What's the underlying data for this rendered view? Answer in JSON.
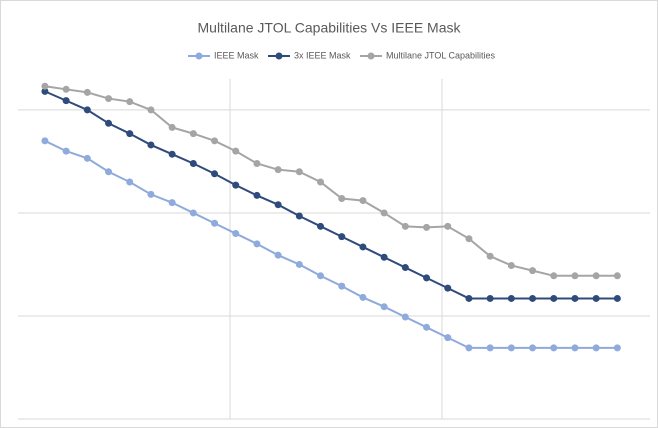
{
  "chart_data": {
    "type": "line",
    "title": "Multilane JTOL Capabilities Vs IEEE Mask",
    "x": [
      1,
      2,
      3,
      4,
      5,
      6,
      7,
      8,
      9,
      10,
      11,
      12,
      13,
      14,
      15,
      16,
      17,
      18,
      19,
      20,
      21,
      22,
      23,
      24,
      25,
      26,
      27,
      28
    ],
    "series": [
      {
        "name": "IEEE Mask",
        "color": "#8faadc",
        "values": [
          2.7,
          2.6,
          2.53,
          2.4,
          2.3,
          2.18,
          2.1,
          2.0,
          1.9,
          1.8,
          1.7,
          1.59,
          1.5,
          1.39,
          1.29,
          1.18,
          1.09,
          0.99,
          0.89,
          0.79,
          0.69,
          0.69,
          0.69,
          0.69,
          0.69,
          0.69,
          0.69,
          0.69
        ]
      },
      {
        "name": "3x IEEE Mask",
        "color": "#2f4b7c",
        "values": [
          3.18,
          3.09,
          3.0,
          2.87,
          2.77,
          2.66,
          2.57,
          2.48,
          2.38,
          2.27,
          2.17,
          2.08,
          1.97,
          1.87,
          1.77,
          1.67,
          1.57,
          1.47,
          1.37,
          1.27,
          1.17,
          1.17,
          1.17,
          1.17,
          1.17,
          1.17,
          1.17,
          1.17
        ]
      },
      {
        "name": "Multilane JTOL Capabilities",
        "color": "#a5a5a5",
        "values": [
          3.23,
          3.2,
          3.17,
          3.11,
          3.08,
          3.0,
          2.83,
          2.77,
          2.7,
          2.6,
          2.48,
          2.42,
          2.4,
          2.3,
          2.14,
          2.12,
          2.0,
          1.87,
          1.86,
          1.87,
          1.75,
          1.58,
          1.49,
          1.44,
          1.39,
          1.39,
          1.39,
          1.39
        ]
      }
    ],
    "xlim": [
      -0.27,
      29.54
    ],
    "xticks": [
      9.73,
      19.73
    ],
    "ylim": [
      0,
      3.3
    ],
    "yticks": [
      0,
      1,
      2,
      3
    ],
    "grid": true,
    "legend": "top"
  }
}
